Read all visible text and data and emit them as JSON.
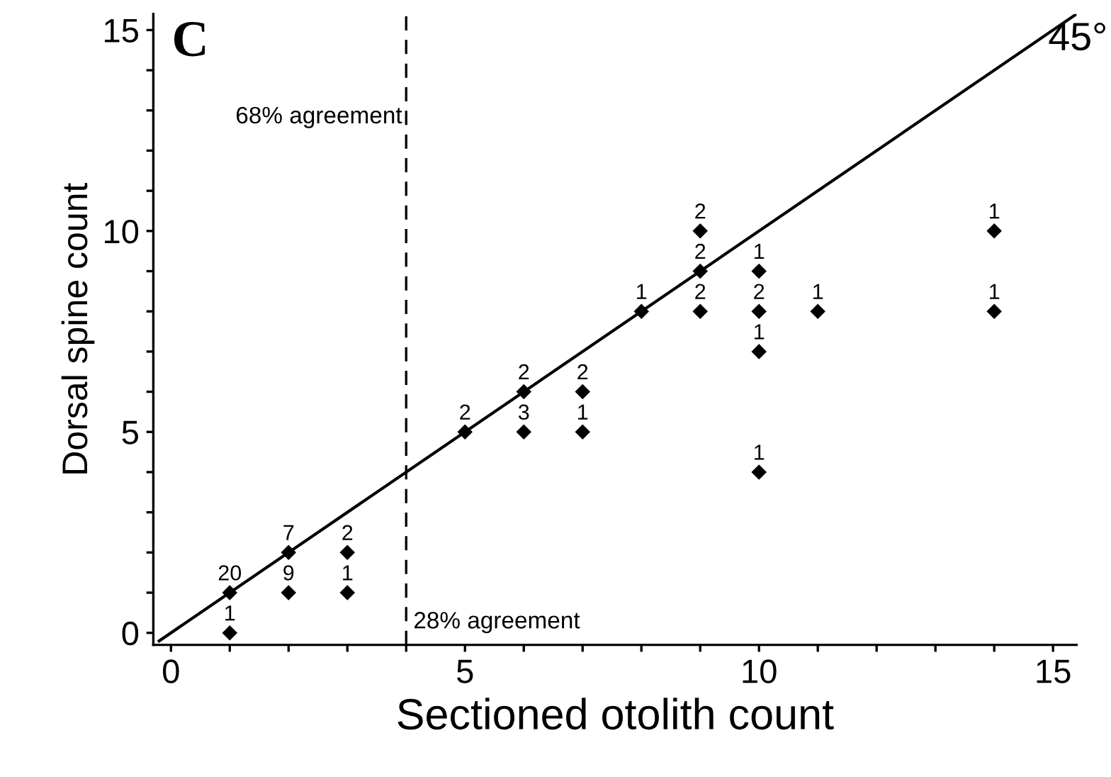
{
  "chart_data": {
    "type": "scatter",
    "title": "C",
    "xlabel": "Sectioned otolith count",
    "ylabel": "Dorsal spine count",
    "xlim": [
      -0.3,
      15.4
    ],
    "ylim": [
      -0.3,
      15.4
    ],
    "xticks": [
      0,
      {
        "value": 1,
        "label": null
      },
      {
        "value": 2,
        "label": null
      },
      {
        "value": 3,
        "label": null
      },
      {
        "value": 4,
        "label": null
      },
      5,
      {
        "value": 6,
        "label": null
      },
      {
        "value": 7,
        "label": null
      },
      {
        "value": 8,
        "label": null
      },
      {
        "value": 9,
        "label": null
      },
      10,
      {
        "value": 11,
        "label": null
      },
      {
        "value": 12,
        "label": null
      },
      {
        "value": 13,
        "label": null
      },
      {
        "value": 14,
        "label": null
      },
      15
    ],
    "yticks": [
      0,
      {
        "value": 1,
        "label": null
      },
      {
        "value": 2,
        "label": null
      },
      {
        "value": 3,
        "label": null
      },
      {
        "value": 4,
        "label": null
      },
      5,
      {
        "value": 6,
        "label": null
      },
      {
        "value": 7,
        "label": null
      },
      {
        "value": 8,
        "label": null
      },
      {
        "value": 9,
        "label": null
      },
      10,
      {
        "value": 11,
        "label": null
      },
      {
        "value": 12,
        "label": null
      },
      {
        "value": 13,
        "label": null
      },
      {
        "value": 14,
        "label": null
      },
      15
    ],
    "grid": false,
    "legend": false,
    "series": [
      {
        "color": "#000000",
        "marker": "diamond",
        "x": [
          1,
          1,
          2,
          2,
          3,
          3,
          5,
          6,
          6,
          7,
          7,
          8,
          9,
          9,
          9,
          10,
          10,
          10,
          10,
          11,
          14,
          14
        ],
        "values": [
          0,
          1,
          1,
          2,
          1,
          2,
          5,
          5,
          6,
          5,
          6,
          8,
          8,
          9,
          10,
          4,
          7,
          8,
          9,
          8,
          8,
          10
        ]
      },
      {
        "type": "line",
        "color": "#000000",
        "marker": "none",
        "line_style": "solid",
        "x": [
          -0.2,
          15.4
        ],
        "values": [
          -0.2,
          15.4
        ]
      }
    ],
    "ref_lines": [
      {
        "axis": "x",
        "value": 4,
        "color": "#000000",
        "line_style": "dashed"
      }
    ],
    "annotations": [
      "68% agreement",
      "28% agreement",
      "45°",
      {
        "text": "1",
        "x": 1,
        "y": 0
      },
      {
        "text": "20",
        "x": 1,
        "y": 1
      },
      {
        "text": "9",
        "x": 2,
        "y": 1
      },
      {
        "text": "7",
        "x": 2,
        "y": 2
      },
      {
        "text": "1",
        "x": 3,
        "y": 1
      },
      {
        "text": "2",
        "x": 3,
        "y": 2
      },
      {
        "text": "2",
        "x": 5,
        "y": 5
      },
      {
        "text": "3",
        "x": 6,
        "y": 5
      },
      {
        "text": "2",
        "x": 6,
        "y": 6
      },
      {
        "text": "1",
        "x": 7,
        "y": 5
      },
      {
        "text": "2",
        "x": 7,
        "y": 6
      },
      {
        "text": "1",
        "x": 8,
        "y": 8
      },
      {
        "text": "2",
        "x": 9,
        "y": 8
      },
      {
        "text": "2",
        "x": 9,
        "y": 9
      },
      {
        "text": "2",
        "x": 9,
        "y": 10
      },
      {
        "text": "1",
        "x": 10,
        "y": 4
      },
      {
        "text": "1",
        "x": 10,
        "y": 7
      },
      {
        "text": "2",
        "x": 10,
        "y": 8
      },
      {
        "text": "1",
        "x": 10,
        "y": 9
      },
      {
        "text": "1",
        "x": 11,
        "y": 8
      },
      {
        "text": "1",
        "x": 14,
        "y": 8
      },
      {
        "text": "1",
        "x": 14,
        "y": 10
      }
    ]
  }
}
